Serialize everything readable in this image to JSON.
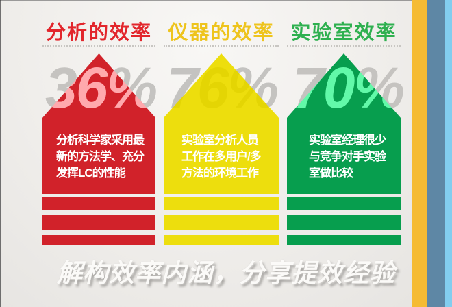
{
  "page": {
    "caption": "解构效率内涵，分享提效经验",
    "percent_color": "#C3C3C3",
    "edge_stripes": {
      "gold": "#F5BB33",
      "steel_blue": "#5E87A5",
      "sky_blue": "#82CDEF"
    }
  },
  "columns": [
    {
      "header": "分析的效率",
      "header_color": "#E2262C",
      "arrow_color": "#D1222A",
      "percent": "36%",
      "lines": [
        "分析科学家采用最",
        "新的方法学、充分",
        "发挥LC的性能"
      ]
    },
    {
      "header": "仪器的效率",
      "header_color": "#EEC41D",
      "arrow_color": "#EDDE0D",
      "percent": "76%",
      "lines": [
        "实验室分析人员",
        "工作在多用户/多",
        "方法的环境工作"
      ]
    },
    {
      "header": "实验室效率",
      "header_color": "#2EB04F",
      "arrow_color": "#079E4E",
      "percent": "70%",
      "lines": [
        "实验室经理很少",
        "与竞争对手实验",
        "室做比较"
      ]
    }
  ]
}
